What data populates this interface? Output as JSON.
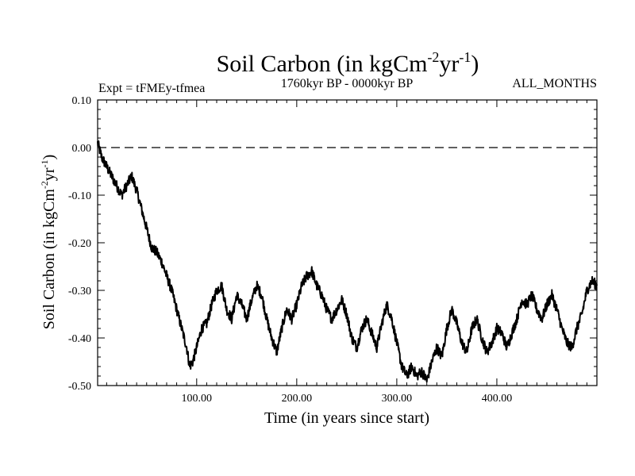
{
  "chart_data": {
    "type": "line",
    "title_main": "Soil Carbon (in kgCm",
    "title_sup1": "-2",
    "title_mid": "yr",
    "title_sup2": "-1",
    "title_end": ")",
    "expt_label": "Expt = tFMEy-tfmea",
    "subtitle": "1760kyr BP - 0000kyr BP",
    "months_label": "ALL_MONTHS",
    "xlabel": "Time (in years since start)",
    "ylabel_main": "Soil Carbon (in kgCm",
    "ylabel_sup1": "-2",
    "ylabel_mid": "yr",
    "ylabel_sup2": "-1",
    "ylabel_end": ")",
    "xlim": [
      1,
      500
    ],
    "ylim": [
      -0.5,
      0.1
    ],
    "xticks": [
      100,
      200,
      300,
      400
    ],
    "xtick_labels": [
      "100.00",
      "200.00",
      "300.00",
      "400.00"
    ],
    "yticks": [
      0.1,
      0.0,
      -0.1,
      -0.2,
      -0.3,
      -0.4,
      -0.5
    ],
    "ytick_labels": [
      "0.10",
      "0.00",
      "-0.10",
      "-0.20",
      "-0.30",
      "-0.40",
      "-0.50"
    ],
    "zero_line": 0.0,
    "series": [
      {
        "name": "Soil Carbon",
        "color": "#000000",
        "anchors": [
          [
            1,
            0.01
          ],
          [
            5,
            -0.02
          ],
          [
            10,
            -0.04
          ],
          [
            20,
            -0.08
          ],
          [
            25,
            -0.1
          ],
          [
            30,
            -0.08
          ],
          [
            35,
            -0.06
          ],
          [
            40,
            -0.09
          ],
          [
            45,
            -0.13
          ],
          [
            50,
            -0.17
          ],
          [
            55,
            -0.21
          ],
          [
            60,
            -0.22
          ],
          [
            65,
            -0.24
          ],
          [
            70,
            -0.27
          ],
          [
            75,
            -0.3
          ],
          [
            80,
            -0.34
          ],
          [
            85,
            -0.38
          ],
          [
            90,
            -0.42
          ],
          [
            93,
            -0.46
          ],
          [
            96,
            -0.45
          ],
          [
            100,
            -0.42
          ],
          [
            105,
            -0.38
          ],
          [
            110,
            -0.37
          ],
          [
            115,
            -0.33
          ],
          [
            120,
            -0.3
          ],
          [
            125,
            -0.29
          ],
          [
            130,
            -0.34
          ],
          [
            135,
            -0.36
          ],
          [
            140,
            -0.31
          ],
          [
            145,
            -0.33
          ],
          [
            150,
            -0.36
          ],
          [
            155,
            -0.32
          ],
          [
            160,
            -0.29
          ],
          [
            165,
            -0.31
          ],
          [
            170,
            -0.36
          ],
          [
            175,
            -0.4
          ],
          [
            180,
            -0.43
          ],
          [
            185,
            -0.38
          ],
          [
            190,
            -0.34
          ],
          [
            195,
            -0.36
          ],
          [
            200,
            -0.33
          ],
          [
            205,
            -0.29
          ],
          [
            210,
            -0.27
          ],
          [
            215,
            -0.26
          ],
          [
            220,
            -0.29
          ],
          [
            225,
            -0.31
          ],
          [
            230,
            -0.34
          ],
          [
            235,
            -0.36
          ],
          [
            240,
            -0.34
          ],
          [
            245,
            -0.32
          ],
          [
            250,
            -0.35
          ],
          [
            255,
            -0.4
          ],
          [
            260,
            -0.42
          ],
          [
            265,
            -0.38
          ],
          [
            270,
            -0.36
          ],
          [
            275,
            -0.39
          ],
          [
            280,
            -0.42
          ],
          [
            285,
            -0.37
          ],
          [
            290,
            -0.33
          ],
          [
            295,
            -0.36
          ],
          [
            300,
            -0.41
          ],
          [
            305,
            -0.46
          ],
          [
            310,
            -0.48
          ],
          [
            315,
            -0.46
          ],
          [
            320,
            -0.48
          ],
          [
            325,
            -0.47
          ],
          [
            330,
            -0.49
          ],
          [
            335,
            -0.45
          ],
          [
            340,
            -0.42
          ],
          [
            345,
            -0.44
          ],
          [
            350,
            -0.38
          ],
          [
            355,
            -0.34
          ],
          [
            360,
            -0.37
          ],
          [
            365,
            -0.41
          ],
          [
            370,
            -0.43
          ],
          [
            375,
            -0.38
          ],
          [
            380,
            -0.36
          ],
          [
            385,
            -0.4
          ],
          [
            390,
            -0.43
          ],
          [
            395,
            -0.41
          ],
          [
            400,
            -0.38
          ],
          [
            405,
            -0.39
          ],
          [
            410,
            -0.42
          ],
          [
            415,
            -0.39
          ],
          [
            420,
            -0.36
          ],
          [
            425,
            -0.32
          ],
          [
            430,
            -0.33
          ],
          [
            435,
            -0.31
          ],
          [
            440,
            -0.34
          ],
          [
            445,
            -0.36
          ],
          [
            450,
            -0.33
          ],
          [
            455,
            -0.31
          ],
          [
            460,
            -0.34
          ],
          [
            465,
            -0.38
          ],
          [
            470,
            -0.41
          ],
          [
            475,
            -0.42
          ],
          [
            480,
            -0.38
          ],
          [
            485,
            -0.35
          ],
          [
            490,
            -0.3
          ],
          [
            495,
            -0.28
          ],
          [
            500,
            -0.29
          ]
        ]
      }
    ]
  }
}
